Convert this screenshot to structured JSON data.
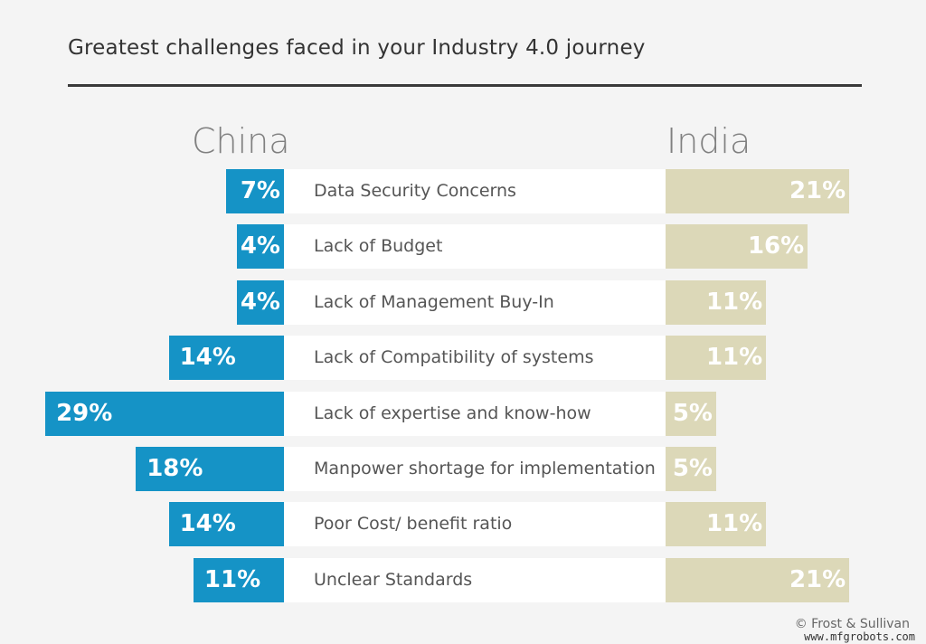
{
  "chart_data": {
    "type": "bar",
    "title": "Greatest challenges faced in your Industry 4.0 journey",
    "categories": [
      "Data Security Concerns",
      "Lack of Budget",
      "Lack of Management Buy-In",
      "Lack of Compatibility of systems",
      "Lack of expertise and know-how",
      "Manpower shortage for implementation",
      "Poor Cost/ benefit ratio",
      "Unclear Standards"
    ],
    "series": [
      {
        "name": "China",
        "values": [
          7,
          4,
          4,
          14,
          29,
          18,
          14,
          11
        ],
        "color": "#1593c6"
      },
      {
        "name": "India",
        "values": [
          21,
          16,
          11,
          11,
          5,
          5,
          11,
          21
        ],
        "color": "#dcd8b8"
      }
    ],
    "unit": "%",
    "grid": false
  },
  "credit": "© Frost & Sullivan",
  "watermark": "www.mfgrobots.com"
}
